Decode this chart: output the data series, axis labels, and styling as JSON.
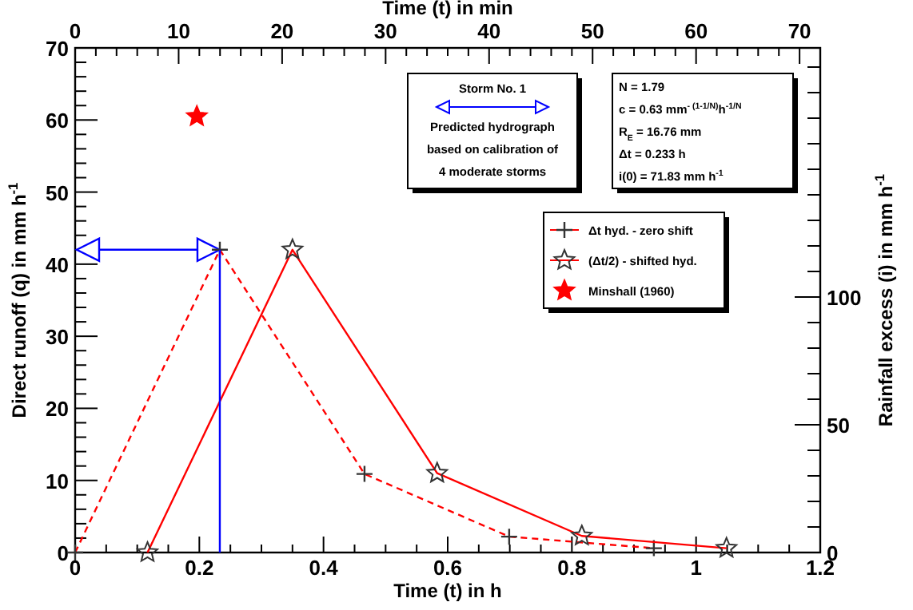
{
  "chart_data": {
    "type": "line",
    "xlabel": "Time (t) in h",
    "ylabel": "Direct runoff (q) in mm h$^{-1}$",
    "y2label": "Rainfall excess (i) in mm h$^{-1}$",
    "x2label": "Time (t) in min",
    "xlim": [
      0,
      1.2
    ],
    "xticks": [
      0,
      {
        "value": 0.05,
        "label": null
      },
      {
        "value": 0.1,
        "label": null
      },
      {
        "value": 0.15,
        "label": null
      },
      0.2,
      {
        "value": 0.25,
        "label": null
      },
      {
        "value": 0.3,
        "label": null
      },
      {
        "value": 0.35,
        "label": null
      },
      0.4,
      {
        "value": 0.45,
        "label": null
      },
      {
        "value": 0.5,
        "label": null
      },
      {
        "value": 0.55,
        "label": null
      },
      0.6,
      {
        "value": 0.65,
        "label": null
      },
      {
        "value": 0.7,
        "label": null
      },
      {
        "value": 0.75,
        "label": null
      },
      0.8,
      {
        "value": 0.85,
        "label": null
      },
      {
        "value": 0.9,
        "label": null
      },
      {
        "value": 0.95,
        "label": null
      },
      1,
      {
        "value": 1.05,
        "label": null
      },
      {
        "value": 1.1,
        "label": null
      },
      {
        "value": 1.15,
        "label": null
      },
      1.2
    ],
    "ylim": [
      0,
      70
    ],
    "yticks": [
      0,
      {
        "value": 2,
        "label": null
      },
      {
        "value": 4,
        "label": null
      },
      {
        "value": 6,
        "label": null
      },
      {
        "value": 8,
        "label": null
      },
      10,
      {
        "value": 12,
        "label": null
      },
      {
        "value": 14,
        "label": null
      },
      {
        "value": 16,
        "label": null
      },
      {
        "value": 18,
        "label": null
      },
      20,
      {
        "value": 22,
        "label": null
      },
      {
        "value": 24,
        "label": null
      },
      {
        "value": 26,
        "label": null
      },
      {
        "value": 28,
        "label": null
      },
      30,
      {
        "value": 32,
        "label": null
      },
      {
        "value": 34,
        "label": null
      },
      {
        "value": 36,
        "label": null
      },
      {
        "value": 38,
        "label": null
      },
      40,
      {
        "value": 42,
        "label": null
      },
      {
        "value": 44,
        "label": null
      },
      {
        "value": 46,
        "label": null
      },
      {
        "value": 48,
        "label": null
      },
      50,
      {
        "value": 52,
        "label": null
      },
      {
        "value": 54,
        "label": null
      },
      {
        "value": 56,
        "label": null
      },
      {
        "value": 58,
        "label": null
      },
      60,
      {
        "value": 62,
        "label": null
      },
      {
        "value": 64,
        "label": null
      },
      {
        "value": 66,
        "label": null
      },
      {
        "value": 68,
        "label": null
      },
      70
    ],
    "y2lim": [
      0,
      197.5
    ],
    "y2ticks": [
      0,
      {
        "value": 10,
        "label": null
      },
      {
        "value": 20,
        "label": null
      },
      {
        "value": 30,
        "label": null
      },
      {
        "value": 40,
        "label": null
      },
      50,
      {
        "value": 60,
        "label": null
      },
      {
        "value": 70,
        "label": null
      },
      {
        "value": 80,
        "label": null
      },
      {
        "value": 90,
        "label": null
      },
      100,
      {
        "value": 110,
        "label": null
      },
      {
        "value": 120,
        "label": null
      },
      {
        "value": 130,
        "label": null
      },
      {
        "value": 140,
        "label": null
      },
      {
        "value": 150,
        "label": null
      },
      {
        "value": 160,
        "label": null
      },
      {
        "value": 170,
        "label": null
      },
      {
        "value": 180,
        "label": null
      },
      {
        "value": 190,
        "label": null
      }
    ],
    "x2lim": [
      0,
      72
    ],
    "x2ticks": [
      0,
      {
        "value": 2,
        "label": null
      },
      {
        "value": 4,
        "label": null
      },
      {
        "value": 6,
        "label": null
      },
      {
        "value": 8,
        "label": null
      },
      10,
      {
        "value": 12,
        "label": null
      },
      {
        "value": 14,
        "label": null
      },
      {
        "value": 16,
        "label": null
      },
      {
        "value": 18,
        "label": null
      },
      20,
      {
        "value": 22,
        "label": null
      },
      {
        "value": 24,
        "label": null
      },
      {
        "value": 26,
        "label": null
      },
      {
        "value": 28,
        "label": null
      },
      30,
      {
        "value": 32,
        "label": null
      },
      {
        "value": 34,
        "label": null
      },
      {
        "value": 36,
        "label": null
      },
      {
        "value": 38,
        "label": null
      },
      40,
      {
        "value": 42,
        "label": null
      },
      {
        "value": 44,
        "label": null
      },
      {
        "value": 46,
        "label": null
      },
      {
        "value": 48,
        "label": null
      },
      50,
      {
        "value": 52,
        "label": null
      },
      {
        "value": 54,
        "label": null
      },
      {
        "value": 56,
        "label": null
      },
      {
        "value": 58,
        "label": null
      },
      60,
      {
        "value": 62,
        "label": null
      },
      {
        "value": 64,
        "label": null
      },
      {
        "value": 66,
        "label": null
      },
      {
        "value": 68,
        "label": null
      },
      70
    ],
    "grid": false,
    "legend": "top right",
    "series": [
      {
        "name": "Δt hyd. - zero shift",
        "color": "#ff0000",
        "line_style": "dashed",
        "marker": "cross",
        "x": [
          0,
          0.233,
          0.466,
          0.699,
          0.932
        ],
        "values": [
          0,
          42,
          10.9,
          2.2,
          0.6
        ]
      },
      {
        "name": "(Δt/2) - shifted hyd.",
        "color": "#ff0000",
        "line_style": "solid",
        "marker": "star",
        "x": [
          0.1165,
          0.35,
          0.583,
          0.816,
          1.049
        ],
        "values": [
          0,
          42,
          11,
          2.3,
          0.6
        ]
      },
      {
        "name": "Minshall (1960)",
        "type": "scatter",
        "color": "#ff0000",
        "marker": "star",
        "x": [
          0.196
        ],
        "values": [
          60.5
        ]
      },
      {
        "color": "#0000ff",
        "line_style": "solid",
        "marker": "none",
        "x": [
          0.233,
          0.233
        ],
        "values": [
          0,
          42
        ]
      }
    ],
    "annotations": [
      "Storm No. 1",
      "Predicted hydrograph",
      "based on calibration of",
      "4 moderate storms",
      "N = 1.79",
      "c = 0.63 mm$^{- (1-1/N)}$h$^{-1/N}$",
      "R$_{E}$ = 16.76 mm",
      "Δt = 0.233 h",
      "i(0) = 71.83 mm h$^{-1}$"
    ]
  }
}
